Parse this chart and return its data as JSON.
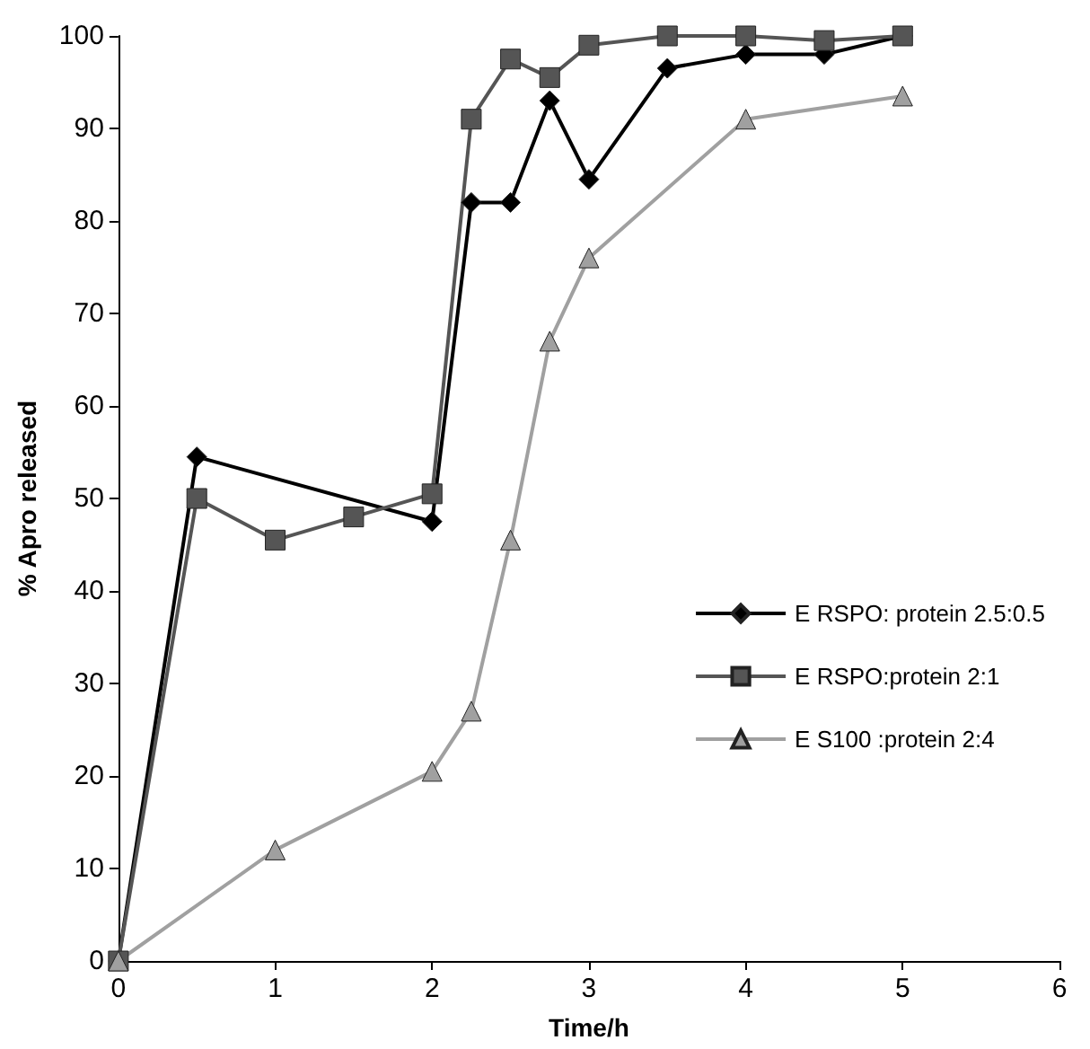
{
  "chart_data": {
    "type": "line",
    "xlabel": "Time/h",
    "ylabel": "% Apro released",
    "xlim": [
      0,
      6
    ],
    "xticks": [
      0,
      1,
      2,
      3,
      4,
      5,
      6
    ],
    "ylim": [
      0,
      100
    ],
    "yticks": [
      0,
      10,
      20,
      30,
      40,
      50,
      60,
      70,
      80,
      90,
      100
    ],
    "grid": false,
    "legend": "right",
    "line_style": "solid",
    "series": [
      {
        "name": "E RSPO: protein 2.5:0.5",
        "color": "#000000",
        "marker": "diamond",
        "x": [
          0,
          0.5,
          2,
          2.25,
          2.5,
          2.75,
          3,
          3.5,
          4,
          4.5,
          5
        ],
        "values": [
          0,
          54.5,
          47.5,
          82,
          82,
          93,
          84.5,
          96.5,
          98,
          98,
          100
        ]
      },
      {
        "name": "E RSPO:protein 2:1",
        "color": "#555555",
        "marker": "square",
        "x": [
          0,
          0.5,
          1,
          1.5,
          2,
          2.25,
          2.5,
          2.75,
          3,
          3.5,
          4,
          4.5,
          5
        ],
        "values": [
          0,
          50,
          45.5,
          48,
          50.5,
          91,
          97.5,
          95.5,
          99,
          100,
          100,
          99.5,
          100
        ]
      },
      {
        "name": "E S100 :protein 2:4",
        "color": "#a0a0a0",
        "marker": "triangle",
        "x": [
          0,
          1,
          2,
          2.25,
          2.5,
          2.75,
          3,
          4,
          5
        ],
        "values": [
          0,
          12,
          20.5,
          27,
          45.5,
          67,
          76,
          91,
          93.5
        ]
      }
    ]
  }
}
